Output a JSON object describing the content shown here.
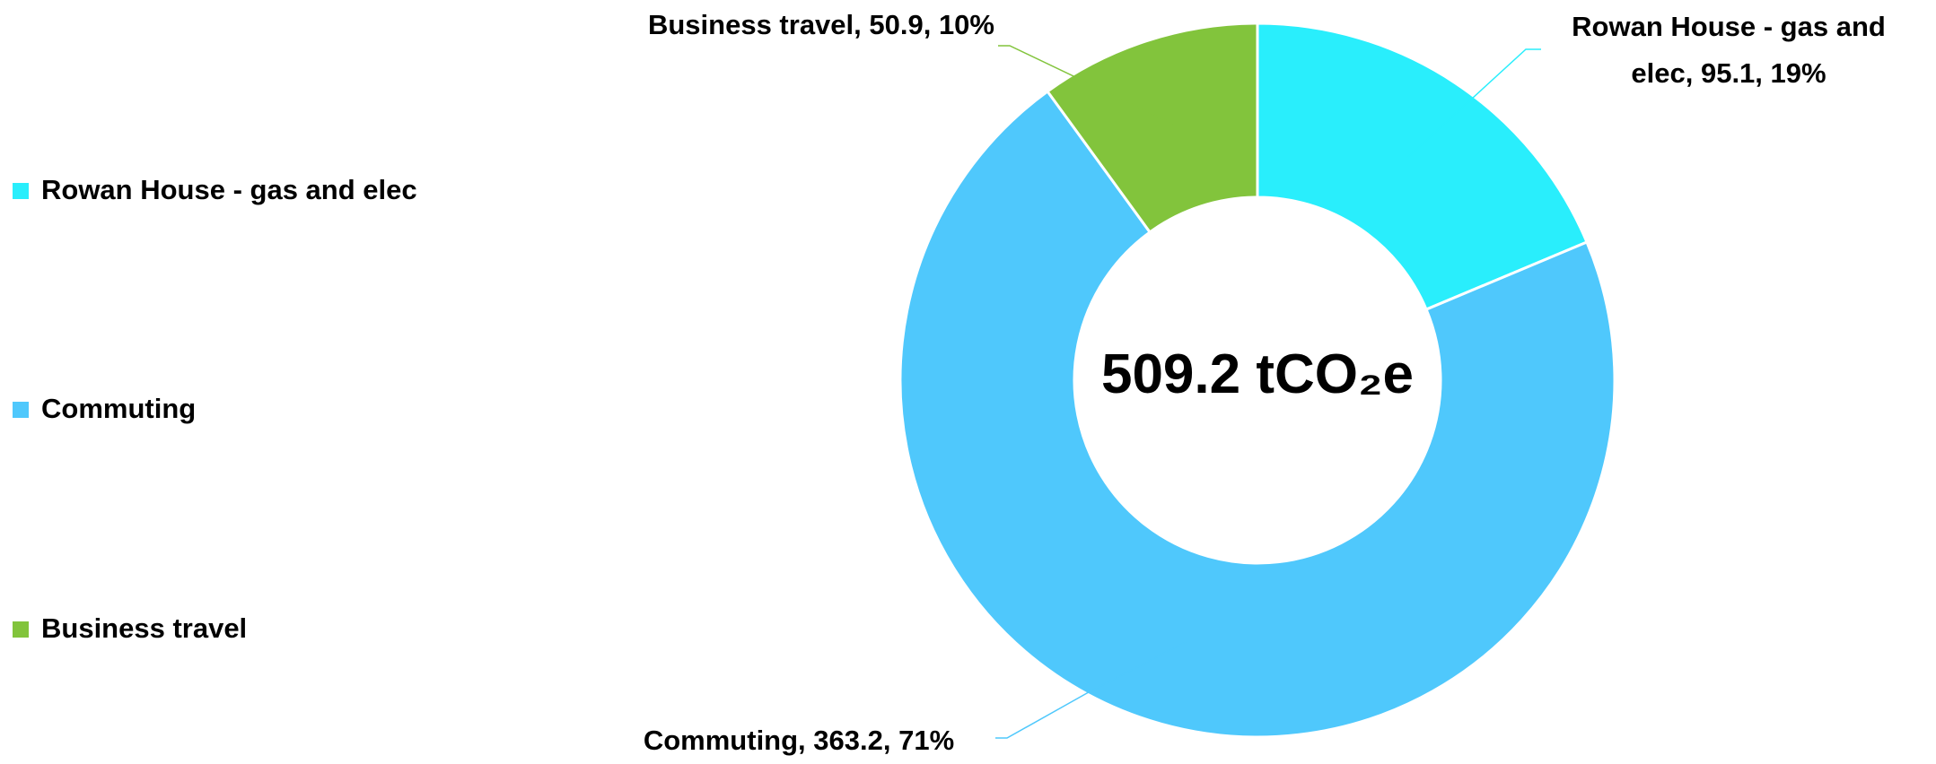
{
  "chart_data": {
    "type": "donut",
    "categories": [
      "Rowan House - gas and elec",
      "Commuting",
      "Business travel"
    ],
    "values": [
      95.1,
      363.2,
      50.9
    ],
    "value_labels": [
      "Rowan House - gas and elec, 95.1, 19%",
      "Commuting, 363.2, 71%",
      "Business travel, 50.9, 10%"
    ],
    "colors": [
      "#29eefc",
      "#4fc8fc",
      "#82c43c"
    ],
    "center_label": "509.2 tCO₂e",
    "legend": "left"
  }
}
